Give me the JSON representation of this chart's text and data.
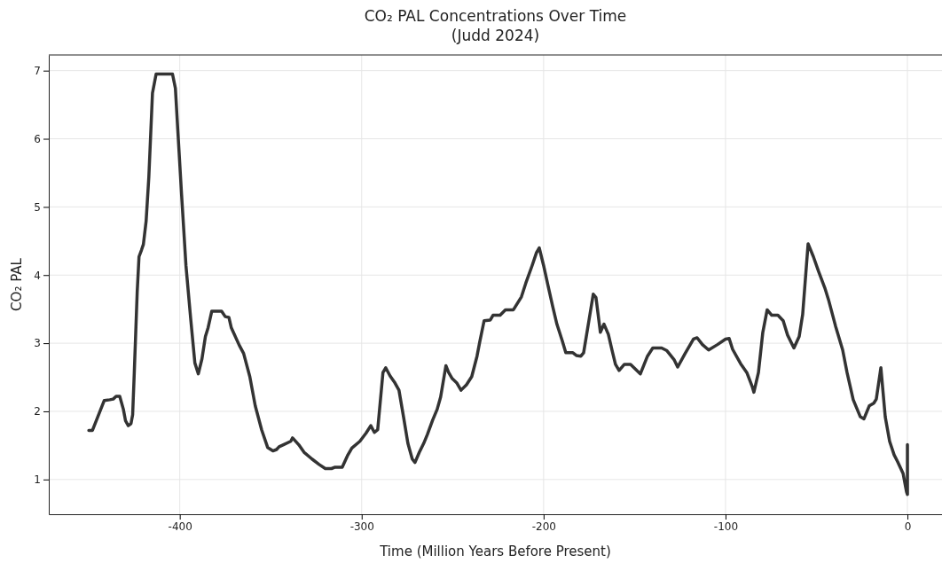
{
  "chart_data": {
    "type": "line",
    "title": "CO₂ PAL Concentrations Over Time",
    "subtitle": "(Judd 2024)",
    "xlabel": "Time (Million Years Before Present)",
    "ylabel": "CO₂ PAL",
    "x": [
      -450,
      -448,
      -444,
      -441.5,
      -438.5,
      -436.6,
      -435,
      -433,
      -431,
      -429.8,
      -428.3,
      -426.8,
      -425.9,
      -425,
      -423.4,
      -422.4,
      -421,
      -420,
      -418.5,
      -417,
      -415,
      -413,
      -404,
      -402.4,
      -401,
      -399,
      -396.6,
      -394,
      -391.7,
      -389.8,
      -387.8,
      -385.9,
      -384.4,
      -382.4,
      -377,
      -375,
      -373,
      -371.7,
      -367.3,
      -364.9,
      -361.5,
      -358.5,
      -355,
      -351.7,
      -348.8,
      -346.8,
      -345.4,
      -343,
      -339,
      -338,
      -334.6,
      -331.7,
      -327.3,
      -323.4,
      -320,
      -316.6,
      -314.6,
      -310.7,
      -307.8,
      -305.4,
      -301,
      -297.6,
      -295,
      -293,
      -291.2,
      -288.3,
      -286.8,
      -284.4,
      -282,
      -279.5,
      -277,
      -274.6,
      -272.2,
      -270.7,
      -268.3,
      -265.9,
      -263.9,
      -261,
      -258.5,
      -256.6,
      -253.7,
      -252.2,
      -250.2,
      -247.8,
      -245.4,
      -242.4,
      -239.5,
      -236.6,
      -235.1,
      -232.7,
      -229.3,
      -227.8,
      -223.9,
      -221,
      -216.6,
      -212.2,
      -209.8,
      -206.3,
      -203.9,
      -202.4,
      -200,
      -197.6,
      -195,
      -192.7,
      -189.8,
      -187.8,
      -183.9,
      -182,
      -179.5,
      -178,
      -175.1,
      -172.7,
      -171.2,
      -168.8,
      -166.8,
      -164.4,
      -162.4,
      -160.5,
      -158.5,
      -155.6,
      -152.2,
      -146.8,
      -142.9,
      -140,
      -135.1,
      -132.2,
      -128.3,
      -126.3,
      -122.4,
      -117.6,
      -115.6,
      -112.7,
      -109.3,
      -104.4,
      -100,
      -98,
      -96.1,
      -91.7,
      -88.3,
      -85.4,
      -84.4,
      -81.9,
      -79.5,
      -77.1,
      -74.6,
      -71.2,
      -68.3,
      -65.9,
      -62.4,
      -59.5,
      -57.6,
      -54.6,
      -51.7,
      -48.8,
      -45.4,
      -43.4,
      -39.5,
      -35.6,
      -33.2,
      -29.8,
      -25.9,
      -23.9,
      -21,
      -18.5,
      -17.1,
      -14.6,
      -12.2,
      -9.8,
      -7.3,
      -5.4,
      -2.4,
      -0.5,
      0,
      0
    ],
    "series": [
      {
        "color": "#333333",
        "values": [
          1.72,
          1.72,
          1.99,
          2.16,
          2.17,
          2.18,
          2.22,
          2.22,
          2.03,
          1.86,
          1.79,
          1.82,
          1.95,
          2.57,
          3.75,
          4.27,
          4.37,
          4.45,
          4.79,
          5.44,
          6.67,
          6.95,
          6.95,
          6.74,
          6.09,
          5.18,
          4.14,
          3.36,
          2.71,
          2.55,
          2.77,
          3.1,
          3.23,
          3.47,
          3.47,
          3.39,
          3.38,
          3.23,
          2.97,
          2.85,
          2.51,
          2.08,
          1.73,
          1.47,
          1.42,
          1.44,
          1.48,
          1.51,
          1.56,
          1.61,
          1.51,
          1.4,
          1.3,
          1.22,
          1.16,
          1.16,
          1.18,
          1.18,
          1.35,
          1.46,
          1.56,
          1.68,
          1.79,
          1.69,
          1.73,
          2.57,
          2.64,
          2.52,
          2.43,
          2.31,
          1.92,
          1.53,
          1.3,
          1.25,
          1.4,
          1.53,
          1.66,
          1.87,
          2.03,
          2.21,
          2.67,
          2.57,
          2.48,
          2.42,
          2.31,
          2.39,
          2.51,
          2.81,
          3.02,
          3.33,
          3.34,
          3.41,
          3.41,
          3.49,
          3.49,
          3.68,
          3.88,
          4.14,
          4.33,
          4.4,
          4.14,
          3.85,
          3.54,
          3.28,
          3.04,
          2.86,
          2.86,
          2.82,
          2.81,
          2.86,
          3.33,
          3.72,
          3.67,
          3.16,
          3.28,
          3.13,
          2.9,
          2.69,
          2.6,
          2.69,
          2.69,
          2.55,
          2.81,
          2.93,
          2.93,
          2.89,
          2.76,
          2.65,
          2.84,
          3.06,
          3.08,
          2.98,
          2.9,
          2.98,
          3.06,
          3.07,
          2.91,
          2.7,
          2.57,
          2.37,
          2.28,
          2.57,
          3.16,
          3.49,
          3.41,
          3.41,
          3.33,
          3.12,
          2.93,
          3.1,
          3.42,
          4.46,
          4.27,
          4.05,
          3.81,
          3.64,
          3.25,
          2.9,
          2.57,
          2.17,
          1.92,
          1.89,
          2.08,
          2.12,
          2.18,
          2.64,
          1.92,
          1.56,
          1.36,
          1.26,
          1.09,
          0.82,
          0.78,
          1.51
        ]
      }
    ],
    "xlim": [
      -472,
      19
    ],
    "ylim": [
      0.49,
      7.23
    ],
    "xticks": [
      -400,
      -300,
      -200,
      -100,
      0
    ],
    "yticks": [
      1,
      2,
      3,
      4,
      5,
      6,
      7
    ],
    "grid": true,
    "marker": "none",
    "line_style": "solid"
  }
}
